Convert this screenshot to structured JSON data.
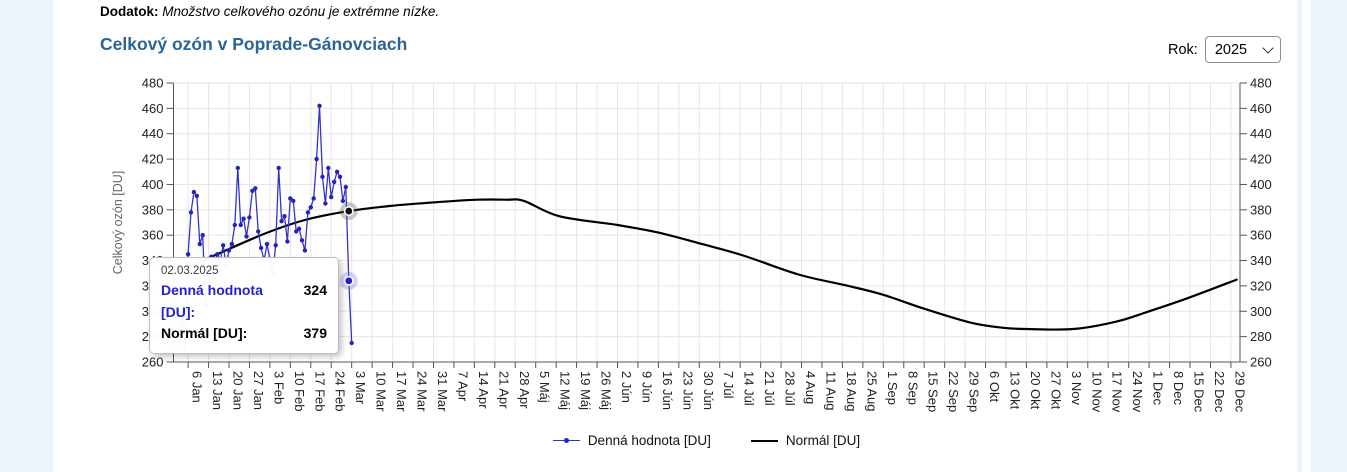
{
  "page": {
    "note_label": "Dodatok:",
    "note_text": "Množstvo celkového ozónu je extrémne nízke.",
    "title": "Celkový ozón v Poprade-Gánovciach",
    "year_label": "Rok:",
    "year_value": "2025"
  },
  "tooltip": {
    "date": "02.03.2025",
    "daily_label": "Denná hodnota [DU]:",
    "daily_value": "324",
    "normal_label": "Normál [DU]:",
    "normal_value": "379"
  },
  "chart_data": {
    "type": "line",
    "title": "Celkový ozón v Poprade-Gánovciach",
    "xlabel": "",
    "ylabel": "Celkový ozón [DU]",
    "ylim": [
      260,
      480
    ],
    "ytick_step": 20,
    "grid": true,
    "legend_position": "bottom",
    "x_tick_first_day_index": 5,
    "x_tick_step_days": 7,
    "x_tick_labels": [
      "6 Jan",
      "13 Jan",
      "20 Jan",
      "27 Jan",
      "3 Feb",
      "10 Feb",
      "17 Feb",
      "24 Feb",
      "3 Mar",
      "10 Mar",
      "17 Mar",
      "24 Mar",
      "31 Mar",
      "7 Apr",
      "14 Apr",
      "21 Apr",
      "28 Apr",
      "5 Máj",
      "12 Máj",
      "19 Máj",
      "26 Máj",
      "2 Jún",
      "9 Jún",
      "16 Jún",
      "23 Jún",
      "30 Jún",
      "7 Júl",
      "14 Júl",
      "21 Júl",
      "28 Júl",
      "4 Aug",
      "11 Aug",
      "18 Aug",
      "25 Aug",
      "1 Sep",
      "8 Sep",
      "15 Sep",
      "22 Sep",
      "29 Sep",
      "6 Okt",
      "13 Okt",
      "20 Okt",
      "27 Okt",
      "3 Nov",
      "10 Nov",
      "17 Nov",
      "24 Nov",
      "1 Dec",
      "8 Dec",
      "15 Dec",
      "22 Dec",
      "29 Dec"
    ],
    "series": [
      {
        "name": "Denná hodnota [DU]",
        "color": "#3333cc",
        "marker": "circle",
        "start_date": "2025-01-01",
        "values": [
          332,
          300,
          285,
          292,
          271,
          345,
          378,
          394,
          391,
          353,
          360,
          305,
          322,
          343,
          336,
          345,
          340,
          352,
          336,
          348,
          353,
          368,
          413,
          368,
          373,
          359,
          374,
          395,
          397,
          363,
          350,
          340,
          353,
          341,
          330,
          352,
          413,
          371,
          375,
          355,
          389,
          387,
          363,
          365,
          356,
          348,
          378,
          382,
          389,
          420,
          462,
          406,
          385,
          413,
          390,
          402,
          410,
          406,
          387,
          398,
          324,
          275
        ]
      },
      {
        "name": "Normál [DU]",
        "color": "#000000",
        "anchors_day_index": [
          0,
          14,
          31,
          45,
          60,
          74,
          90,
          104,
          114,
          120,
          132,
          152,
          166,
          181,
          195,
          214,
          231,
          243,
          257,
          273,
          284,
          292,
          308,
          323,
          334,
          348,
          364
        ],
        "anchors_values": [
          330,
          344,
          361,
          372,
          379,
          383,
          386,
          388,
          388,
          387,
          375,
          368,
          362,
          353,
          344,
          329,
          320,
          313,
          302,
          291,
          287,
          286,
          286,
          292,
          300,
          311,
          325
        ]
      }
    ],
    "highlight": {
      "date": "02.03.2025",
      "day_index": 60,
      "daily_value": 324,
      "normal_value": 379
    }
  }
}
